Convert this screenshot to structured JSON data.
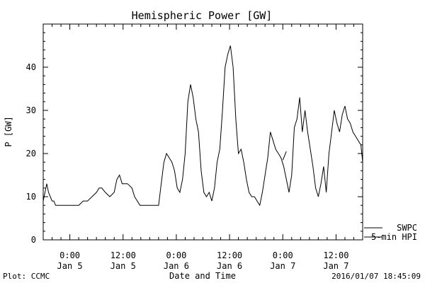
{
  "chart_data": {
    "type": "line",
    "title": "Hemispheric Power [GW]",
    "xlabel": "Date and Time",
    "ylabel": "P [GW]",
    "ylim": [
      0,
      50
    ],
    "xlim_hours": [
      -3,
      33
    ],
    "grid": false,
    "y_ticks": [
      0,
      10,
      20,
      30,
      40
    ],
    "x_ticks": [
      {
        "h": 0,
        "time": "0:00",
        "date": "Jan 5"
      },
      {
        "h": 6,
        "time": "12:00",
        "date": "Jan 5"
      },
      {
        "h": 12,
        "time": "0:00",
        "date": "Jan 6"
      },
      {
        "h": 18,
        "time": "12:00",
        "date": "Jan 6"
      },
      {
        "h": 24,
        "time": "0:00",
        "date": "Jan 7"
      },
      {
        "h": 30,
        "time": "12:00",
        "date": "Jan 7"
      }
    ],
    "legend": {
      "placement": "right",
      "entries": [
        "SWPC",
        "5-min HPI"
      ]
    },
    "series": [
      {
        "name": "SWPC",
        "x": [
          -3.0,
          -2.8,
          -2.6,
          -2.4,
          -2.2,
          -2.0,
          -1.8,
          -1.6,
          -1.4,
          -1.2,
          -1.0,
          0.0,
          1.0,
          1.5,
          2.0,
          2.5,
          3.0,
          3.3,
          3.6,
          4.0,
          4.5,
          5.0,
          5.3,
          5.6,
          5.9,
          6.2,
          6.5,
          7.0,
          7.3,
          7.6,
          7.9,
          8.2,
          8.5,
          9.0,
          10.0,
          10.3,
          10.6,
          10.9,
          11.2,
          11.5,
          11.8,
          12.1,
          12.4,
          12.7,
          13.0,
          13.3,
          13.6,
          13.9,
          14.2,
          14.5,
          14.8,
          15.1,
          15.4,
          15.7,
          16.0,
          16.3,
          16.6,
          16.9,
          17.2,
          17.5,
          17.8,
          18.1,
          18.4,
          18.7,
          19.0,
          19.3,
          19.6,
          19.9,
          20.2,
          20.5,
          20.8,
          21.1,
          21.4,
          21.7,
          22.0,
          22.3,
          22.6,
          22.9,
          23.2,
          23.5,
          23.8,
          24.1,
          24.4,
          24.7,
          25.0,
          25.3,
          25.6,
          25.9,
          26.2,
          26.5,
          26.8,
          27.1,
          27.4,
          27.7,
          28.0,
          28.3,
          28.6,
          28.9,
          29.2,
          29.5,
          29.8,
          30.1,
          30.4,
          30.7,
          31.0,
          31.3,
          31.6,
          31.9,
          32.2,
          32.5,
          32.8,
          33.0
        ],
        "values": [
          9,
          11,
          13,
          11,
          10,
          9,
          9,
          8,
          8,
          8,
          8,
          8,
          8,
          9,
          9,
          10,
          11,
          12,
          12,
          11,
          10,
          11,
          14,
          15,
          13,
          13,
          13,
          12,
          10,
          9,
          8,
          8,
          8,
          8,
          8,
          13,
          18,
          20,
          19,
          18,
          16,
          12,
          11,
          14,
          20,
          32,
          36,
          33,
          28,
          25,
          16,
          11,
          10,
          11,
          9,
          12,
          18,
          21,
          30,
          40,
          43,
          45,
          40,
          28,
          20,
          21,
          18,
          14,
          11,
          10,
          10,
          9,
          8,
          11,
          15,
          19,
          25,
          23,
          21,
          20,
          19,
          17,
          14,
          11,
          15,
          26,
          28,
          33,
          25,
          30,
          25,
          21,
          17,
          12,
          10,
          13,
          17,
          11,
          20,
          25,
          30,
          27,
          25,
          29,
          31,
          28,
          27,
          25,
          24,
          23,
          22,
          18
        ]
      },
      {
        "name": "5-min HPI",
        "x": [
          24.0,
          24.2,
          24.4
        ],
        "values": [
          18.5,
          19.5,
          20.5
        ]
      }
    ]
  },
  "footer": {
    "left": "Plot: CCMC",
    "right": "2016/01/07 18:45:09"
  }
}
